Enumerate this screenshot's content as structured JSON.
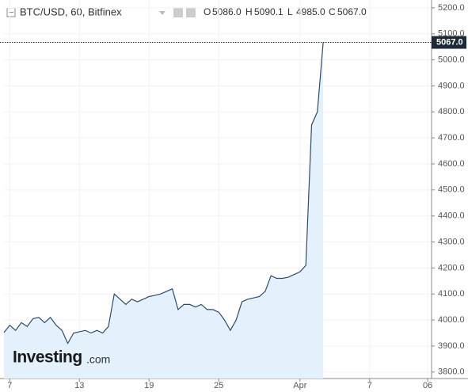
{
  "chart_data": {
    "type": "area",
    "title": "BTC/USD, 60, Bitfinex",
    "ohlc": {
      "names": [
        "O",
        "H",
        "L",
        "C"
      ],
      "values": [
        5086,
        5090.1,
        4985,
        5067
      ],
      "value_labels": [
        "5086.0",
        "5090.1",
        "4985.0",
        "5067.0"
      ]
    },
    "logo": {
      "name": "Investing",
      "suffix": ".com"
    },
    "categories": [
      null,
      "7",
      null,
      null,
      null,
      null,
      null,
      null,
      null,
      null,
      null,
      null,
      null,
      "13",
      null,
      null,
      null,
      null,
      null,
      null,
      null,
      null,
      null,
      null,
      null,
      "19",
      null,
      null,
      null,
      null,
      null,
      null,
      null,
      null,
      null,
      null,
      null,
      "25",
      null,
      null,
      null,
      null,
      null,
      null,
      null,
      null,
      null,
      null,
      null,
      null,
      null,
      "Apr",
      null,
      null,
      null,
      null,
      null,
      null,
      null,
      null,
      null,
      null,
      null,
      "7",
      null,
      null,
      null,
      null,
      null,
      null,
      null,
      null,
      null,
      "06"
    ],
    "series": [
      {
        "name": "BTC/USD",
        "color": "#2c4c6e",
        "values": [
          3952,
          3980,
          3960,
          3990,
          3975,
          4005,
          4010,
          3990,
          4010,
          3980,
          3960,
          3910,
          3950,
          3955,
          3960,
          3950,
          3960,
          3950,
          3975,
          4100,
          4080,
          4060,
          4080,
          4070,
          4080,
          4090,
          4095,
          4100,
          4110,
          4120,
          4040,
          4060,
          4060,
          4050,
          4060,
          4040,
          4040,
          4030,
          4000,
          3960,
          4000,
          4070,
          4080,
          4085,
          4090,
          4110,
          4170,
          4160,
          4160,
          4165,
          4175,
          4185,
          4210,
          4750,
          4800,
          5067,
          null,
          null,
          null,
          null,
          null,
          null,
          null,
          null,
          null,
          null,
          null,
          null,
          null,
          null,
          null,
          null,
          null,
          null
        ]
      }
    ],
    "last_price": {
      "value": 5067,
      "label": "5067.0"
    },
    "ylim": [
      3775,
      5230
    ],
    "yticks": [
      {
        "value": 3800,
        "label": "3800.0"
      },
      {
        "value": 3900,
        "label": "3900.0"
      },
      {
        "value": 4000,
        "label": "4000.0"
      },
      {
        "value": 4100,
        "label": "4100.0"
      },
      {
        "value": 4200,
        "label": "4200.0"
      },
      {
        "value": 4300,
        "label": "4300.0"
      },
      {
        "value": 4400,
        "label": "4400.0"
      },
      {
        "value": 4500,
        "label": "4500.0"
      },
      {
        "value": 4600,
        "label": "4600.0"
      },
      {
        "value": 4700,
        "label": "4700.0"
      },
      {
        "value": 4800,
        "label": "4800.0"
      },
      {
        "value": 4900,
        "label": "4900.0"
      },
      {
        "value": 5000,
        "label": "5000.0"
      },
      {
        "value": 5100,
        "label": "5100.0"
      },
      {
        "value": 5200,
        "label": "5200.0"
      }
    ],
    "grid": true,
    "fill_color": "#e4f0fb"
  }
}
